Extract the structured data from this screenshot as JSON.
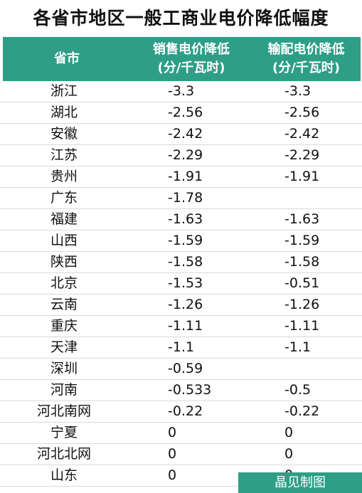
{
  "title": "各省市地区一般工商业电价降低幅度",
  "header": {
    "province": "省市",
    "sale_line1": "销售电价降低",
    "sale_line2": "(分/千瓦时)",
    "dist_line1": "输配电价降低",
    "dist_line2": "(分/千瓦时)"
  },
  "rows": [
    {
      "province": "浙江",
      "sale": "-3.3",
      "dist": "-3.3"
    },
    {
      "province": "湖北",
      "sale": "-2.56",
      "dist": "-2.56"
    },
    {
      "province": "安徽",
      "sale": "-2.42",
      "dist": "-2.42"
    },
    {
      "province": "江苏",
      "sale": "-2.29",
      "dist": "-2.29"
    },
    {
      "province": "贵州",
      "sale": "-1.91",
      "dist": "-1.91"
    },
    {
      "province": "广东",
      "sale": "-1.78",
      "dist": ""
    },
    {
      "province": "福建",
      "sale": "-1.63",
      "dist": "-1.63"
    },
    {
      "province": "山西",
      "sale": "-1.59",
      "dist": "-1.59"
    },
    {
      "province": "陕西",
      "sale": "-1.58",
      "dist": "-1.58"
    },
    {
      "province": "北京",
      "sale": "-1.53",
      "dist": "-0.51"
    },
    {
      "province": "云南",
      "sale": "-1.26",
      "dist": "-1.26"
    },
    {
      "province": "重庆",
      "sale": "-1.11",
      "dist": "-1.11"
    },
    {
      "province": "天津",
      "sale": "-1.1",
      "dist": "-1.1"
    },
    {
      "province": "深圳",
      "sale": "-0.59",
      "dist": ""
    },
    {
      "province": "河南",
      "sale": "-0.533",
      "dist": "-0.5"
    },
    {
      "province": "河北南网",
      "sale": "-0.22",
      "dist": "-0.22"
    },
    {
      "province": "宁夏",
      "sale": "0",
      "dist": "0"
    },
    {
      "province": "河北北网",
      "sale": "0",
      "dist": "0"
    },
    {
      "province": "山东",
      "sale": "0",
      "dist": "0"
    }
  ],
  "footer": "晶见制图",
  "colors": {
    "accent": "#2e9e86"
  }
}
